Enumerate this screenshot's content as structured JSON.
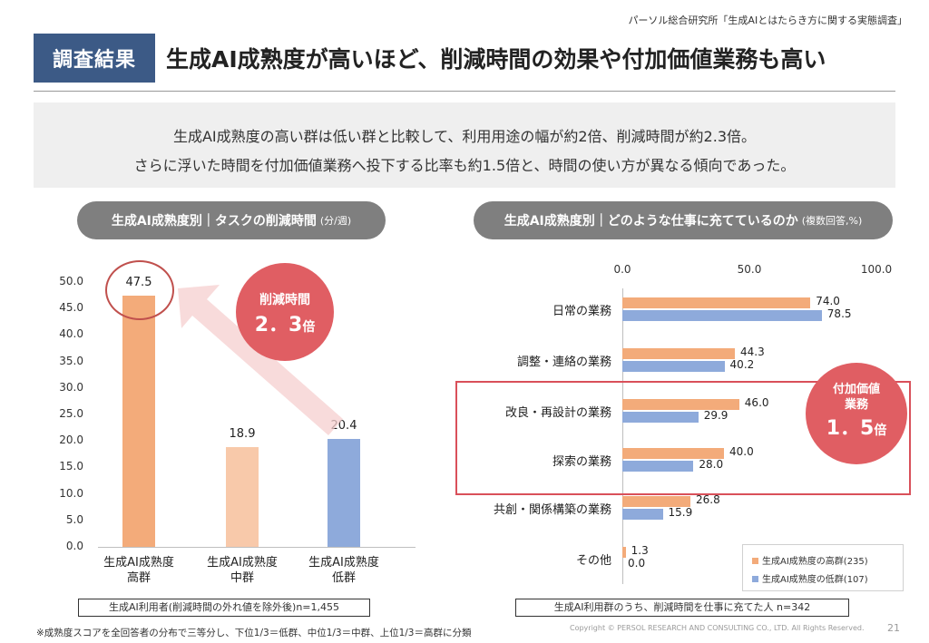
{
  "source": "パーソル総合研究所「生成AIとはたらき方に関する実態調査」",
  "tag": "調査結果",
  "headline": "生成AI成熟度が高いほど、削減時間の効果や付加価値業務も高い",
  "summary": {
    "line1": "生成AI成熟度の高い群は低い群と比較して、利用用途の幅が約2倍、削減時間が約2.3倍。",
    "line2": "さらに浮いた時間を付加価値業務へ投下する比率も約1.5倍と、時間の使い方が異なる傾向であった。"
  },
  "left_panel": {
    "title": "生成AI成熟度別｜タスクの削減時間",
    "unit": "(分/週)",
    "badge_line1": "削減時間",
    "badge_value": "2．3",
    "badge_suffix": "倍",
    "note": "生成AI利用者(削減時間の外れ値を除外後)n=1,455"
  },
  "right_panel": {
    "title": "生成AI成熟度別｜どのような仕事に充てているのか",
    "unit": "(複数回答,%)",
    "badge_line1": "付加価値",
    "badge_line2": "業務",
    "badge_value": "1．5",
    "badge_suffix": "倍",
    "note": "生成AI利用群のうち、削減時間を仕事に充てた人 n=342"
  },
  "footnote": "※成熟度スコアを全回答者の分布で三等分し、下位1/3＝低群、中位1/3＝中群、上位1/3＝高群に分類",
  "copyright": "Copyright © PERSOL RESEARCH AND CONSULTING CO., LTD. All Rights Reserved.",
  "page_number": "21",
  "chart_data": [
    {
      "type": "bar",
      "categories": [
        "生成AI成熟度\n高群",
        "生成AI成熟度\n中群",
        "生成AI成熟度\n低群"
      ],
      "values": [
        47.5,
        18.9,
        20.4
      ],
      "value_labels": [
        "47.5",
        "18.9",
        "20.4"
      ],
      "colors": [
        "#f3ab7a",
        "#f8c9aa",
        "#8eaadb"
      ],
      "ylim": [
        0,
        50
      ],
      "yticks": [
        "0.0",
        "5.0",
        "10.0",
        "15.0",
        "20.0",
        "25.0",
        "30.0",
        "35.0",
        "40.0",
        "45.0",
        "50.0"
      ],
      "grid": false
    },
    {
      "type": "bar",
      "orientation": "horizontal",
      "categories": [
        "日常の業務",
        "調整・連絡の業務",
        "改良・再設計の業務",
        "探索の業務",
        "共創・関係構築の業務",
        "その他"
      ],
      "series": [
        {
          "name": "生成AI成熟度の高群(235)",
          "color": "#f3ab7a",
          "values": [
            74.0,
            44.3,
            46.0,
            40.0,
            26.8,
            1.3
          ],
          "labels": [
            "74.0",
            "44.3",
            "46.0",
            "40.0",
            "26.8",
            "1.3"
          ]
        },
        {
          "name": "生成AI成熟度の低群(107)",
          "color": "#8eaadb",
          "values": [
            78.5,
            40.2,
            29.9,
            28.0,
            15.9,
            0.0
          ],
          "labels": [
            "78.5",
            "40.2",
            "29.9",
            "28.0",
            "15.9",
            "0.0"
          ]
        }
      ],
      "xlim": [
        0,
        100
      ],
      "xticks": [
        "0.0",
        "50.0",
        "100.0"
      ],
      "legend": "bottom-right",
      "grid": false
    }
  ]
}
